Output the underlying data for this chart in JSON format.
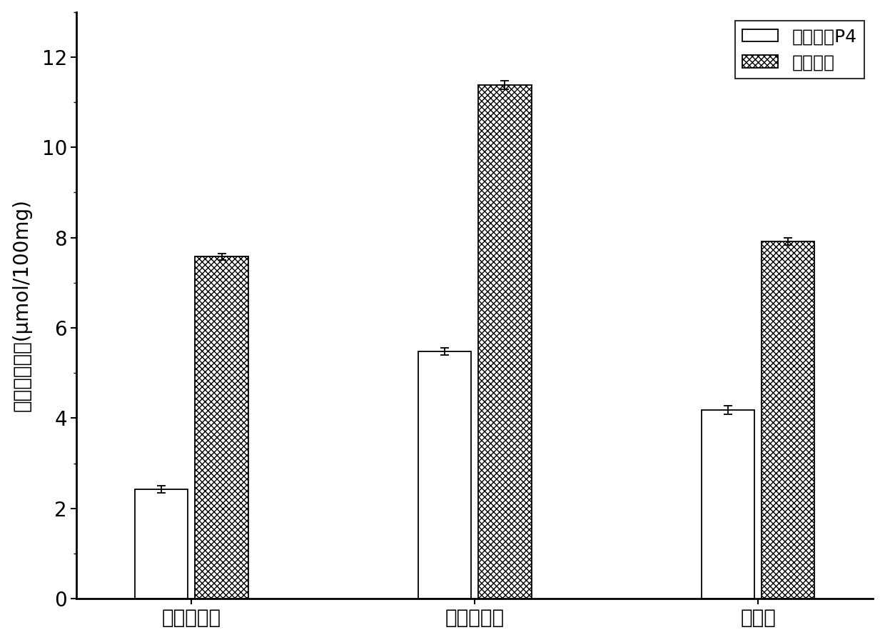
{
  "categories": [
    "牛磺胆酸钠",
    "甘氨胆酸钠",
    "胆酸钠"
  ],
  "series1_name": "纯化多糖P4",
  "series2_name": "考来烯胺",
  "series1_values": [
    2.42,
    5.48,
    4.18
  ],
  "series2_values": [
    7.58,
    11.38,
    7.92
  ],
  "series1_errors": [
    0.08,
    0.08,
    0.1
  ],
  "series2_errors": [
    0.07,
    0.1,
    0.08
  ],
  "ylabel": "胆酸盐结合量(μmol/100mg)",
  "ylim": [
    0,
    13
  ],
  "yticks": [
    0,
    2,
    4,
    6,
    8,
    10,
    12
  ],
  "bar_width": 0.3,
  "background_color": "#ffffff",
  "series1_color": "#ffffff",
  "edge_color": "#000000",
  "axis_fontsize": 20,
  "tick_fontsize": 20,
  "legend_fontsize": 18
}
